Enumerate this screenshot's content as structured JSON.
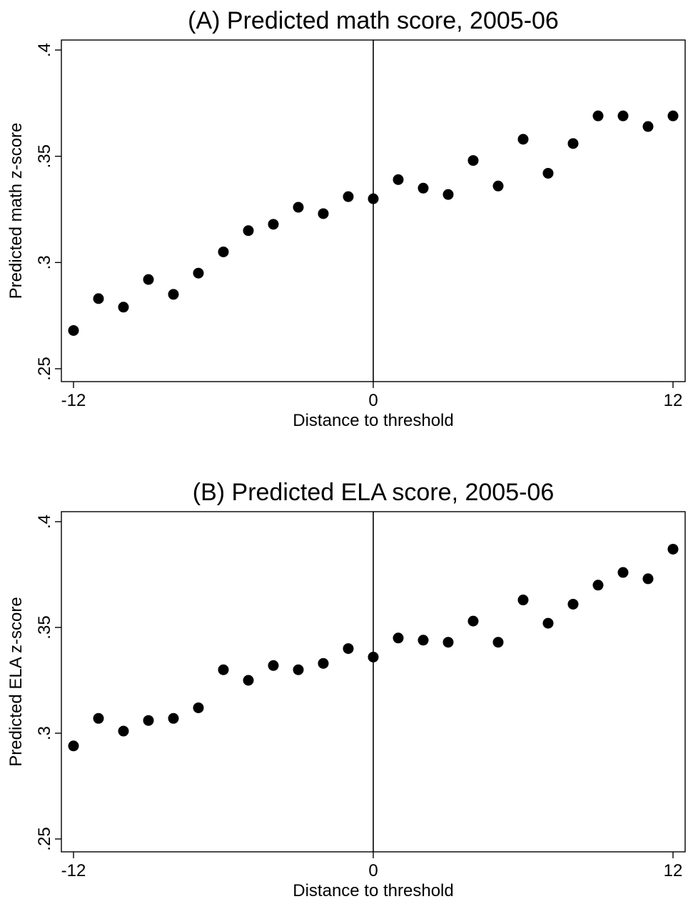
{
  "chart_data": [
    {
      "type": "scatter",
      "title": "(A) Predicted math score, 2005-06",
      "xlabel": "Distance to threshold",
      "ylabel": "Predicted math z-score",
      "xlim": [
        -12,
        12
      ],
      "ylim": [
        0.25,
        0.4
      ],
      "xticks": [
        -12,
        0,
        12
      ],
      "xtick_labels": [
        "-12",
        "0",
        "12"
      ],
      "yticks": [
        0.25,
        0.3,
        0.35,
        0.4
      ],
      "ytick_labels": [
        ".25",
        ".3",
        ".35",
        ".4"
      ],
      "vline_x": 0,
      "grid": false,
      "color": "#000000",
      "points": [
        {
          "x": -12,
          "y": 0.268
        },
        {
          "x": -11,
          "y": 0.283
        },
        {
          "x": -10,
          "y": 0.279
        },
        {
          "x": -9,
          "y": 0.292
        },
        {
          "x": -8,
          "y": 0.285
        },
        {
          "x": -7,
          "y": 0.295
        },
        {
          "x": -6,
          "y": 0.305
        },
        {
          "x": -5,
          "y": 0.315
        },
        {
          "x": -4,
          "y": 0.318
        },
        {
          "x": -3,
          "y": 0.326
        },
        {
          "x": -2,
          "y": 0.323
        },
        {
          "x": -1,
          "y": 0.331
        },
        {
          "x": 0,
          "y": 0.33
        },
        {
          "x": 1,
          "y": 0.339
        },
        {
          "x": 2,
          "y": 0.335
        },
        {
          "x": 3,
          "y": 0.332
        },
        {
          "x": 4,
          "y": 0.348
        },
        {
          "x": 5,
          "y": 0.336
        },
        {
          "x": 6,
          "y": 0.358
        },
        {
          "x": 7,
          "y": 0.342
        },
        {
          "x": 8,
          "y": 0.356
        },
        {
          "x": 9,
          "y": 0.369
        },
        {
          "x": 10,
          "y": 0.369
        },
        {
          "x": 11,
          "y": 0.364
        },
        {
          "x": 12,
          "y": 0.369
        }
      ]
    },
    {
      "type": "scatter",
      "title": "(B) Predicted ELA score, 2005-06",
      "xlabel": "Distance to threshold",
      "ylabel": "Predicted ELA z-score",
      "xlim": [
        -12,
        12
      ],
      "ylim": [
        0.25,
        0.4
      ],
      "xticks": [
        -12,
        0,
        12
      ],
      "xtick_labels": [
        "-12",
        "0",
        "12"
      ],
      "yticks": [
        0.25,
        0.3,
        0.35,
        0.4
      ],
      "ytick_labels": [
        ".25",
        ".3",
        ".35",
        ".4"
      ],
      "vline_x": 0,
      "grid": false,
      "color": "#000000",
      "points": [
        {
          "x": -12,
          "y": 0.294
        },
        {
          "x": -11,
          "y": 0.307
        },
        {
          "x": -10,
          "y": 0.301
        },
        {
          "x": -9,
          "y": 0.306
        },
        {
          "x": -8,
          "y": 0.307
        },
        {
          "x": -7,
          "y": 0.312
        },
        {
          "x": -6,
          "y": 0.33
        },
        {
          "x": -5,
          "y": 0.325
        },
        {
          "x": -4,
          "y": 0.332
        },
        {
          "x": -3,
          "y": 0.33
        },
        {
          "x": -2,
          "y": 0.333
        },
        {
          "x": -1,
          "y": 0.34
        },
        {
          "x": 0,
          "y": 0.336
        },
        {
          "x": 1,
          "y": 0.345
        },
        {
          "x": 2,
          "y": 0.344
        },
        {
          "x": 3,
          "y": 0.343
        },
        {
          "x": 4,
          "y": 0.353
        },
        {
          "x": 5,
          "y": 0.343
        },
        {
          "x": 6,
          "y": 0.363
        },
        {
          "x": 7,
          "y": 0.352
        },
        {
          "x": 8,
          "y": 0.361
        },
        {
          "x": 9,
          "y": 0.37
        },
        {
          "x": 10,
          "y": 0.376
        },
        {
          "x": 11,
          "y": 0.373
        },
        {
          "x": 12,
          "y": 0.387
        }
      ]
    }
  ]
}
